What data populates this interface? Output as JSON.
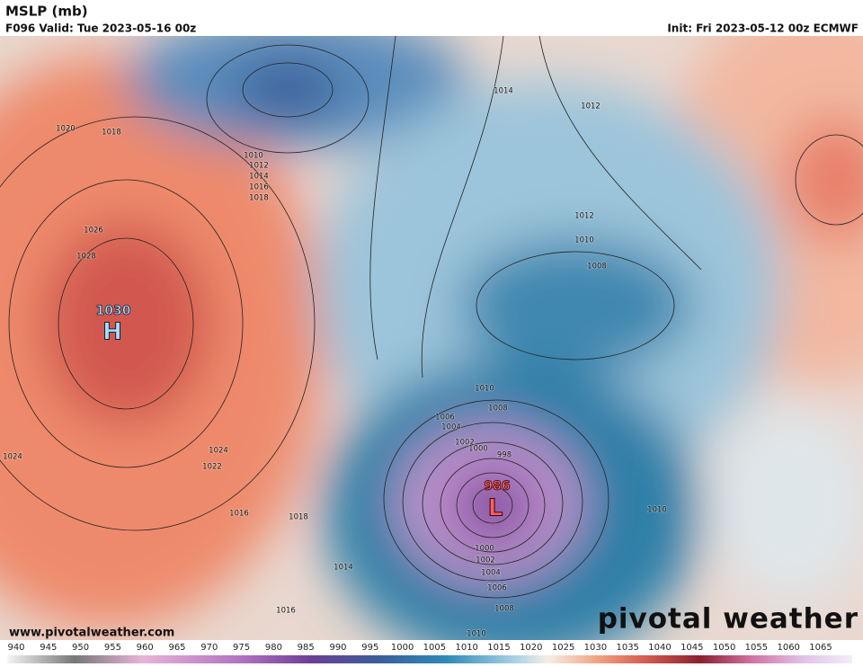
{
  "header": {
    "title": "MSLP (mb)",
    "valid": "F096 Valid: Tue 2023-05-16 00z",
    "init": "Init: Fri 2023-05-12 00z ECMWF"
  },
  "map": {
    "high": {
      "value": 1030,
      "label": "H"
    },
    "low": {
      "value": 986,
      "label": "L"
    },
    "isobar_labels": [
      1020,
      1018,
      1010,
      1012,
      1014,
      1016,
      1018,
      1026,
      1028,
      1024,
      1024,
      1022,
      1016,
      1018,
      1014,
      1016,
      1014,
      1012,
      1012,
      1010,
      1008,
      1010,
      1008,
      1006,
      1004,
      1002,
      1000,
      998,
      1010,
      1000,
      1002,
      1004,
      1006,
      1008,
      1010
    ]
  },
  "footer": {
    "website": "www.pivotalweather.com",
    "logo": "pivotal weather"
  },
  "colorbar": {
    "ticks": [
      940,
      945,
      950,
      955,
      960,
      965,
      970,
      975,
      980,
      985,
      990,
      995,
      1000,
      1005,
      1010,
      1015,
      1020,
      1025,
      1030,
      1035,
      1040,
      1045,
      1050,
      1055,
      1060,
      1065
    ]
  }
}
